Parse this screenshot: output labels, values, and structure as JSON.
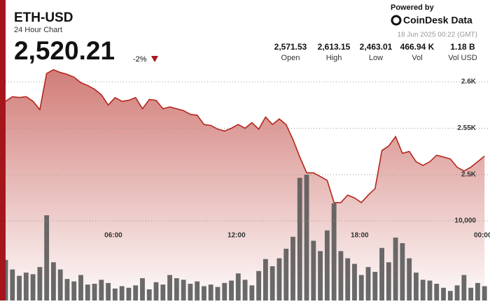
{
  "header": {
    "symbol": "ETH-USD",
    "subtitle": "24 Hour Chart",
    "price": "2,520.21",
    "change": "-2%",
    "powered_by": "Powered by",
    "brand": "CoinDesk Data",
    "timestamp": "18 Jun 2025 00:22 (GMT)",
    "stats": [
      {
        "value": "2,571.53",
        "label": "Open"
      },
      {
        "value": "2,613.15",
        "label": "High"
      },
      {
        "value": "2,463.01",
        "label": "Low"
      },
      {
        "value": "466.94 K",
        "label": "Vol"
      },
      {
        "value": "1.18 B",
        "label": "Vol USD"
      }
    ]
  },
  "chart_data": {
    "type": "area",
    "x": [
      0.75,
      1.083,
      1.417,
      1.75,
      2.083,
      2.417,
      2.75,
      3.083,
      3.417,
      3.75,
      4.083,
      4.417,
      4.75,
      5.083,
      5.417,
      5.75,
      6.083,
      6.417,
      6.75,
      7.083,
      7.417,
      7.75,
      8.083,
      8.417,
      8.75,
      9.083,
      9.417,
      9.75,
      10.083,
      10.417,
      10.75,
      11.083,
      11.417,
      11.75,
      12.083,
      12.417,
      12.75,
      13.083,
      13.417,
      13.75,
      14.083,
      14.417,
      14.75,
      15.083,
      15.417,
      15.75,
      16.083,
      16.417,
      16.75,
      17.083,
      17.417,
      17.75,
      18.083,
      18.417,
      18.75,
      19.083,
      19.417,
      19.75,
      20.083,
      20.417,
      20.75,
      21.083,
      21.417,
      21.75,
      22.083,
      22.417,
      22.75,
      23.083,
      23.417,
      23.75,
      24.083
    ],
    "series": [
      {
        "color": "#b3261e",
        "values": [
          2579,
          2584,
          2583,
          2584,
          2579,
          2570,
          2609,
          2613,
          2610,
          2608,
          2605,
          2599,
          2596,
          2592,
          2586,
          2575,
          2583,
          2579,
          2580,
          2583,
          2571,
          2581,
          2580,
          2571,
          2573,
          2571,
          2569,
          2565,
          2564,
          2554,
          2553,
          2549,
          2547,
          2550,
          2554,
          2550,
          2556,
          2549,
          2562,
          2554,
          2560,
          2554,
          2538,
          2519,
          2502,
          2502,
          2498,
          2494,
          2470,
          2470,
          2478,
          2475,
          2470,
          2478,
          2485,
          2526,
          2531,
          2541,
          2523,
          2525,
          2514,
          2510,
          2514,
          2521,
          2519,
          2517,
          2508,
          2504,
          2508,
          2514,
          2520
        ]
      },
      {
        "type": "bar",
        "axis": "y2",
        "color": "#5a5a5a",
        "values": [
          5100,
          3900,
          3100,
          3500,
          3300,
          4200,
          10700,
          4800,
          3900,
          2700,
          2400,
          3200,
          2000,
          2100,
          2600,
          2200,
          1500,
          1800,
          1600,
          1900,
          2800,
          1400,
          2300,
          2000,
          3200,
          2800,
          2600,
          2100,
          2400,
          1800,
          2000,
          1700,
          2200,
          2500,
          3400,
          2600,
          1900,
          3700,
          5200,
          4300,
          5300,
          6500,
          8000,
          15400,
          15800,
          7500,
          6200,
          8800,
          12200,
          6200,
          5300,
          4600,
          3200,
          4200,
          3600,
          6600,
          4800,
          7900,
          7200,
          5300,
          3500,
          2600,
          2500,
          2100,
          1600,
          1200,
          1900,
          3200,
          1600,
          2200,
          1800
        ]
      }
    ],
    "xlim": [
      0.75,
      24.35
    ],
    "xticks": [
      {
        "value": 6,
        "label": "06:00"
      },
      {
        "value": 12,
        "label": "12:00"
      },
      {
        "value": 18,
        "label": "18:00"
      },
      {
        "value": 24,
        "label": "00:00"
      }
    ],
    "ylim": [
      2364.6,
      2612.8
    ],
    "yticks": [
      {
        "value": 2500,
        "label": "2.5K"
      },
      {
        "value": 2550,
        "label": "2.55K"
      },
      {
        "value": 2600,
        "label": "2.6K"
      }
    ],
    "y2lim": [
      0,
      28950
    ],
    "y2ticks": [
      {
        "value": 10000,
        "label": "10,000"
      }
    ],
    "grid": true
  }
}
